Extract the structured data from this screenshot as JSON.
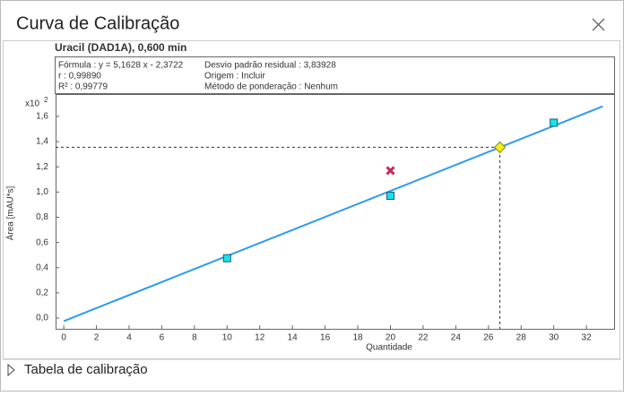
{
  "dialog": {
    "title": "Curva de Calibração",
    "footer": "Tabela de calibração"
  },
  "chart_data": {
    "type": "scatter",
    "title": "Uracil (DAD1A), 0,600 min",
    "info": [
      [
        "Fórmula : y = 5,1628 x - 2,3722",
        "r : 0,99890",
        "R² : 0,99779"
      ],
      [
        "Desvio padrão residual : 3,83928",
        "Origem : Incluir",
        "Método de ponderação : Nenhum"
      ]
    ],
    "x_label": "Quantidade",
    "y_label": "Área [mAU*s]",
    "y_multiplier": {
      "base": "x10",
      "exponent": "2"
    },
    "xlim": [
      -0.5,
      33.75
    ],
    "ylim": [
      -0.085,
      1.77
    ],
    "xticks": [
      0,
      2,
      4,
      6,
      8,
      10,
      12,
      14,
      16,
      18,
      20,
      22,
      24,
      26,
      28,
      30,
      32
    ],
    "yticks": [
      {
        "value": 0,
        "label": "0,0"
      },
      {
        "value": 0.2,
        "label": "0,2"
      },
      {
        "value": 0.4,
        "label": "0,4"
      },
      {
        "value": 0.6,
        "label": "0,6"
      },
      {
        "value": 0.8,
        "label": "0,8"
      },
      {
        "value": 1.0,
        "label": "1,0"
      },
      {
        "value": 1.2,
        "label": "1,2"
      },
      {
        "value": 1.4,
        "label": "1,4"
      },
      {
        "value": 1.6,
        "label": "1,6"
      }
    ],
    "series": [
      {
        "marker": "line",
        "color": "#2e9be8",
        "x": [
          0,
          33
        ],
        "values": [
          -0.024,
          1.68
        ]
      },
      {
        "marker": "square",
        "color": "#19e3e8",
        "x": [
          10,
          20,
          30
        ],
        "values": [
          0.475,
          0.97,
          1.55
        ]
      },
      {
        "marker": "cross",
        "color": "#c8285a",
        "x": [
          20
        ],
        "values": [
          1.17
        ]
      },
      {
        "marker": "diamond",
        "color": "#f0f01e",
        "x": [
          26.7
        ],
        "values": [
          1.355
        ],
        "guides": true
      }
    ]
  }
}
